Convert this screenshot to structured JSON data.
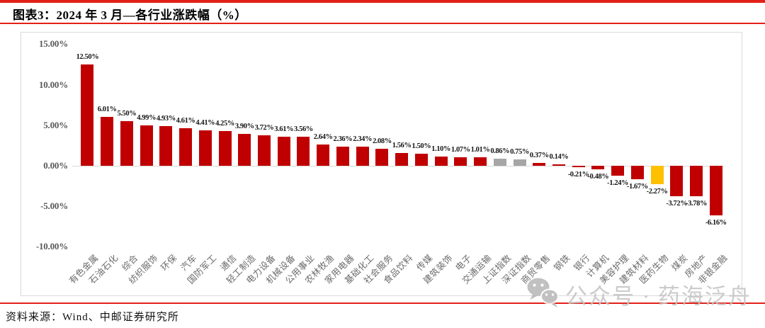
{
  "figure": {
    "title": "图表3：2024 年 3 月—各行业涨跌幅（%）",
    "source": "资料来源：Wind、中邮证券研究所"
  },
  "watermark": {
    "label": "公众号 · 药海泛舟",
    "icon": "wechat-icon"
  },
  "colors": {
    "accent_red": "#e32017",
    "bar_red": "#c00000",
    "bar_gray": "#a6a6a6",
    "bar_orange": "#ffc000",
    "axis_text": "#595959",
    "frame_border": "#d9d9d9"
  },
  "chart_data": {
    "type": "bar",
    "title": "2024 年 3 月—各行业涨跌幅（%）",
    "xlabel": "",
    "ylabel": "",
    "ylim": [
      -10,
      15
    ],
    "grid": false,
    "legend": null,
    "categories": [
      "有色金属",
      "石油石化",
      "综合",
      "纺织服饰",
      "环保",
      "汽车",
      "国防军工",
      "通信",
      "轻工制造",
      "电力设备",
      "机械设备",
      "公用事业",
      "农林牧渔",
      "家用电器",
      "基础化工",
      "社会服务",
      "食品饮料",
      "传媒",
      "建筑装饰",
      "电子",
      "交通运输",
      "上证指数",
      "深证指数",
      "商贸零售",
      "钢铁",
      "银行",
      "计算机",
      "美容护理",
      "建筑材料",
      "医药生物",
      "煤炭",
      "房地产",
      "非银金融"
    ],
    "values": [
      12.5,
      6.01,
      5.5,
      4.99,
      4.93,
      4.61,
      4.41,
      4.25,
      3.9,
      3.72,
      3.61,
      3.56,
      2.64,
      2.36,
      2.34,
      2.08,
      1.56,
      1.5,
      1.1,
      1.07,
      1.01,
      0.86,
      0.75,
      0.37,
      0.14,
      -0.21,
      -0.48,
      -1.24,
      -1.67,
      -2.27,
      -3.72,
      -3.78,
      -6.16
    ],
    "data_labels": [
      "12.50%",
      "6.01%",
      "5.50%",
      "4.99%",
      "4.93%",
      "4.61%",
      "4.41%",
      "4.25%",
      "3.90%",
      "3.72%",
      "3.61%",
      "3.56%",
      "2.64%",
      "2.36%",
      "2.34%",
      "2.08%",
      "1.56%",
      "1.50%",
      "1.10%",
      "1.07%",
      "1.01%",
      "0.86%",
      "0.75%",
      "0.37%",
      "0.14%",
      "-0.21%",
      "-0.48%",
      "-1.24%",
      "-1.67%",
      "-2.27%",
      "-3.72%",
      "-3.78%",
      "-6.16%"
    ],
    "bar_colors": [
      "red",
      "red",
      "red",
      "red",
      "red",
      "red",
      "red",
      "red",
      "red",
      "red",
      "red",
      "red",
      "red",
      "red",
      "red",
      "red",
      "red",
      "red",
      "red",
      "red",
      "red",
      "gray",
      "gray",
      "red",
      "red",
      "red",
      "red",
      "red",
      "red",
      "orange",
      "red",
      "red",
      "red"
    ],
    "highlights": {
      "gray_bars": [
        "上证指数",
        "深证指数"
      ],
      "orange_bar": "医药生物"
    },
    "y_ticks": [
      {
        "value": 15,
        "label": "15.00%"
      },
      {
        "value": 10,
        "label": "10.00%"
      },
      {
        "value": 5,
        "label": "5.00%"
      },
      {
        "value": 0,
        "label": "0.00%"
      },
      {
        "value": -5,
        "label": "-5.00%"
      },
      {
        "value": -10,
        "label": "-10.00%"
      }
    ]
  }
}
